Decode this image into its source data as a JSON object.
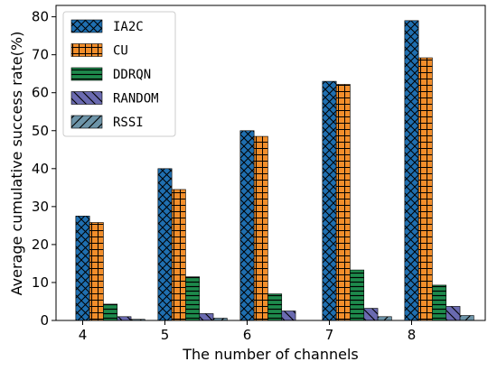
{
  "chart_data": {
    "type": "bar",
    "title": "",
    "xlabel": "The number of channels",
    "ylabel": "Average cumulative success rate(%)",
    "categories": [
      "4",
      "5",
      "6",
      "7",
      "8"
    ],
    "ylim": [
      0,
      83
    ],
    "yticks": [
      "0",
      "10",
      "20",
      "30",
      "40",
      "50",
      "60",
      "70",
      "80"
    ],
    "grid": false,
    "legend_position": "top-left",
    "series": [
      {
        "name": "IA2C",
        "color": "#1f6fb0",
        "hatch": "x",
        "values": [
          27.5,
          40,
          50,
          63,
          79
        ]
      },
      {
        "name": "CU",
        "color": "#f28e2b",
        "hatch": "+",
        "values": [
          25.8,
          34.5,
          48.5,
          62.2,
          69.2
        ]
      },
      {
        "name": "DDRQN",
        "color": "#1e8a4c",
        "hatch": "-",
        "values": [
          4.3,
          11.5,
          7.0,
          13.3,
          9.3
        ]
      },
      {
        "name": "RANDOM",
        "color": "#6a6ab0",
        "hatch": "\\",
        "values": [
          1.0,
          1.8,
          2.5,
          3.2,
          3.7
        ]
      },
      {
        "name": "RSSI",
        "color": "#6d94a8",
        "hatch": "/",
        "values": [
          0.3,
          0.6,
          0,
          1.0,
          1.3
        ]
      }
    ]
  }
}
